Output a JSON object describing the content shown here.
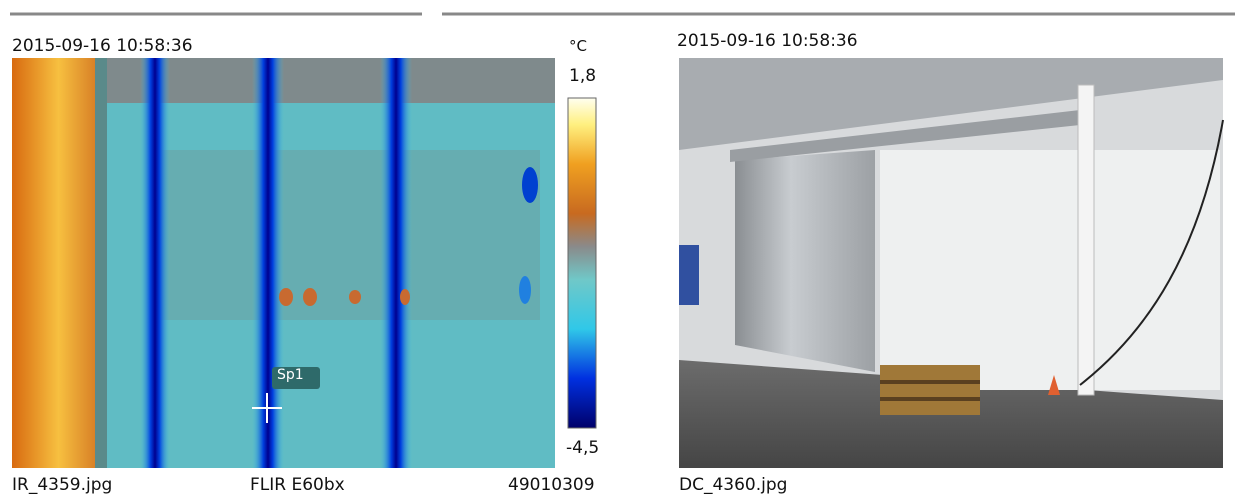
{
  "ir_panel": {
    "timestamp": "2015-09-16 10:58:36",
    "unit": "°C",
    "scale_max": "1,8",
    "scale_min": "-4,5",
    "spot_label": "Sp1",
    "filename": "IR_4359.jpg",
    "camera": "FLIR E60bx",
    "serial": "49010309"
  },
  "photo_panel": {
    "timestamp": "2015-09-16 10:58:36",
    "filename": "DC_4360.jpg"
  }
}
